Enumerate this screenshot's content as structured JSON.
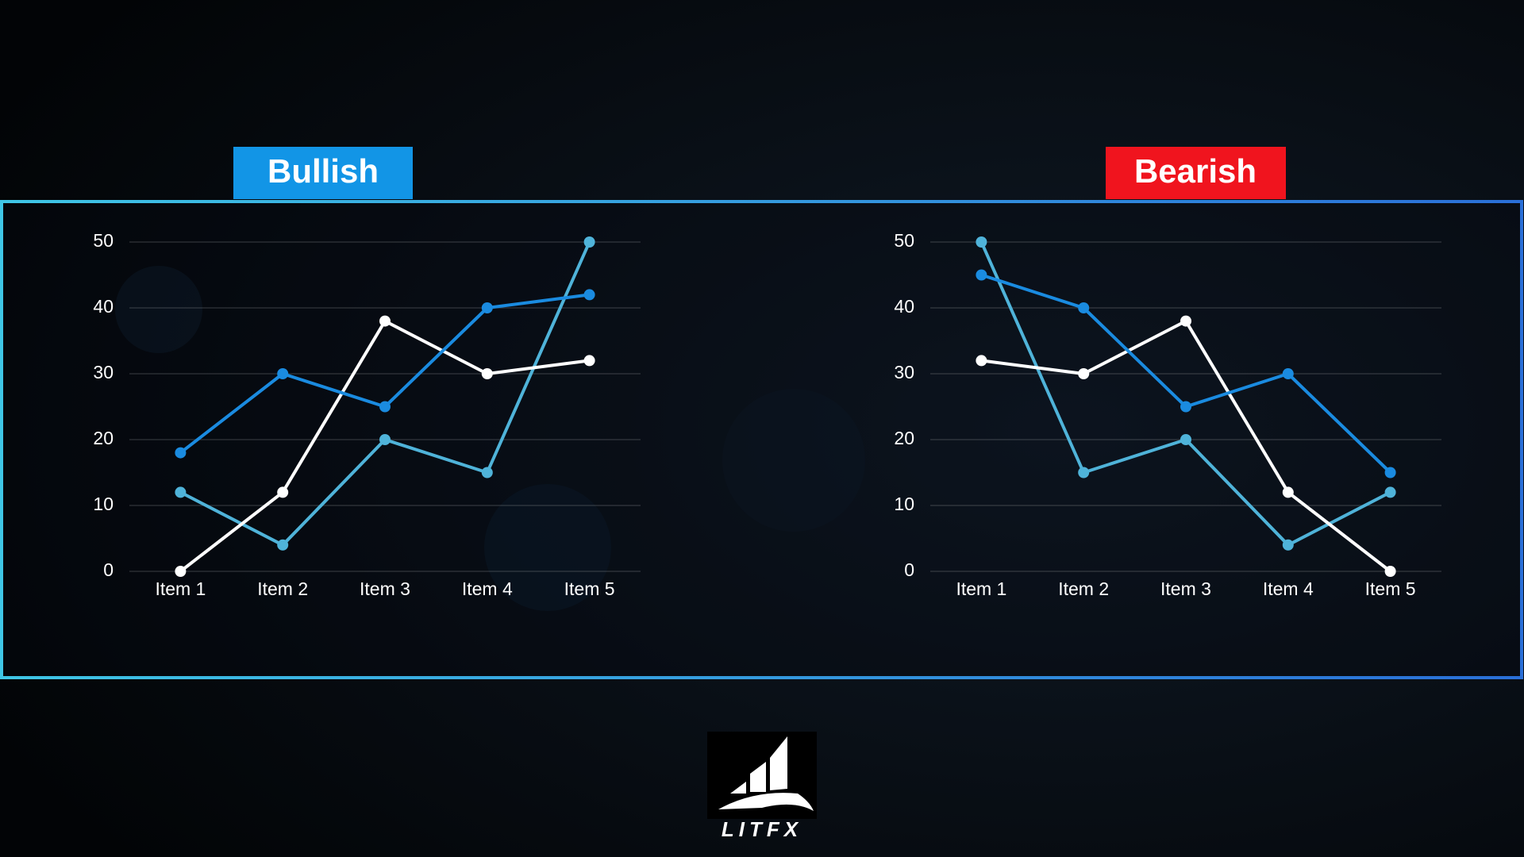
{
  "chart_data": [
    {
      "type": "line",
      "title": "Bullish",
      "title_color": "#1295e6",
      "categories": [
        "Item 1",
        "Item 2",
        "Item 3",
        "Item 4",
        "Item 5"
      ],
      "series": [
        {
          "color": "#4fb3d9",
          "values": [
            12,
            4,
            20,
            15,
            50
          ]
        },
        {
          "color": "#ffffff",
          "values": [
            0,
            12,
            38,
            30,
            32
          ]
        },
        {
          "color": "#1a8be0",
          "values": [
            18,
            30,
            25,
            40,
            42
          ]
        }
      ],
      "ylim": [
        0,
        50
      ],
      "yticks": [
        0,
        10,
        20,
        30,
        40,
        50
      ],
      "grid": true
    },
    {
      "type": "line",
      "title": "Bearish",
      "title_color": "#f0141e",
      "categories": [
        "Item 1",
        "Item 2",
        "Item 3",
        "Item 4",
        "Item 5"
      ],
      "series": [
        {
          "color": "#4fb3d9",
          "values": [
            50,
            15,
            20,
            4,
            12
          ]
        },
        {
          "color": "#ffffff",
          "values": [
            32,
            30,
            38,
            12,
            0
          ]
        },
        {
          "color": "#1a8be0",
          "values": [
            45,
            40,
            25,
            30,
            15
          ]
        }
      ],
      "ylim": [
        0,
        50
      ],
      "yticks": [
        0,
        10,
        20,
        30,
        40,
        50
      ],
      "grid": true
    }
  ],
  "logo": {
    "text": "LITFX"
  }
}
